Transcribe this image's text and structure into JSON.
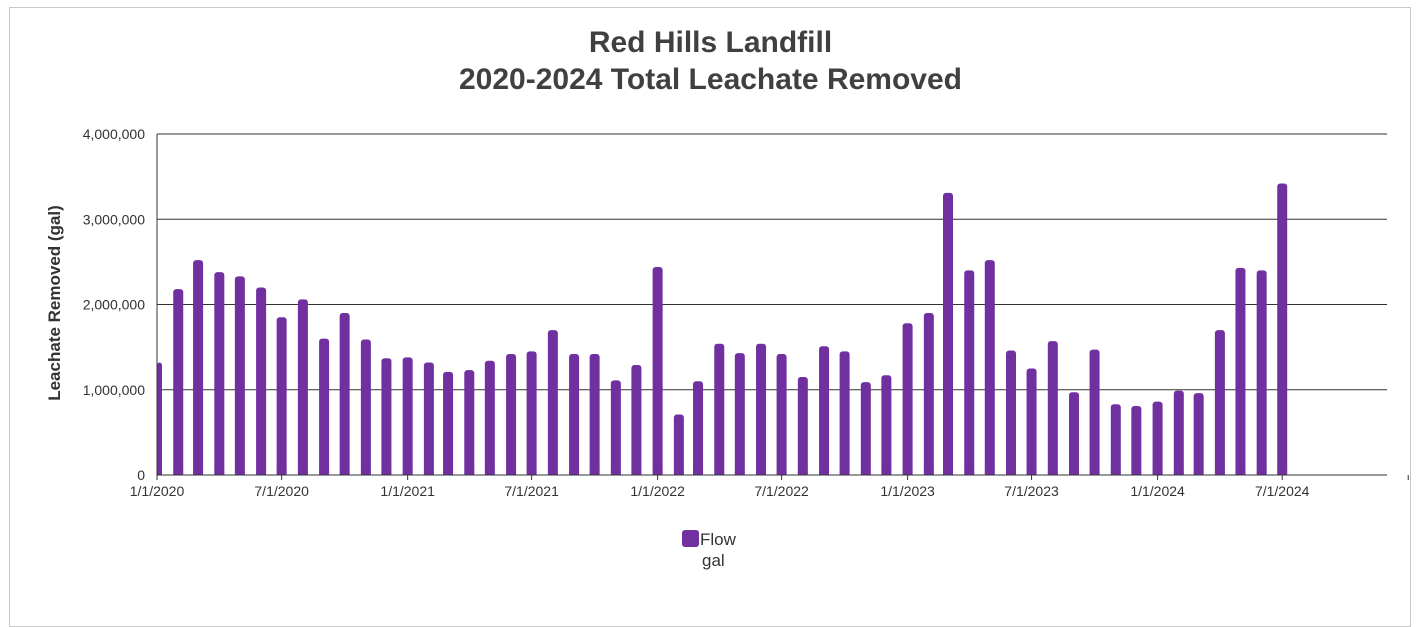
{
  "chart_data": {
    "type": "bar",
    "title": [
      "Red Hills Landfill",
      "2020-2024 Total Leachate Removed"
    ],
    "xlabel": "",
    "ylabel": "Leachate Removed (gal)",
    "ylim": [
      0,
      4000000
    ],
    "yticks": [
      "0",
      "1,000,000",
      "2,000,000",
      "3,000,000",
      "4,000,000"
    ],
    "xticks": [
      "1/1/2020",
      "7/1/2020",
      "1/1/2021",
      "7/1/2021",
      "1/1/2022",
      "7/1/2022",
      "1/1/2023",
      "7/1/2023",
      "1/1/2024",
      "7/1/2024"
    ],
    "xrange": [
      "1/1/2020",
      "12/1/2024"
    ],
    "grid": true,
    "legend_position": "bottom",
    "bar_color": "#7030a0",
    "series": [
      {
        "name": "Flow",
        "unit": "gal",
        "dates": [
          "1/1/2020",
          "2/1/2020",
          "3/1/2020",
          "4/1/2020",
          "5/1/2020",
          "6/1/2020",
          "7/1/2020",
          "8/1/2020",
          "9/1/2020",
          "10/1/2020",
          "11/1/2020",
          "12/1/2020",
          "1/1/2021",
          "2/1/2021",
          "3/1/2021",
          "4/1/2021",
          "5/1/2021",
          "6/1/2021",
          "7/1/2021",
          "8/1/2021",
          "9/1/2021",
          "10/1/2021",
          "11/1/2021",
          "12/1/2021",
          "1/1/2022",
          "2/1/2022",
          "3/1/2022",
          "4/1/2022",
          "5/1/2022",
          "6/1/2022",
          "7/1/2022",
          "8/1/2022",
          "9/1/2022",
          "10/1/2022",
          "11/1/2022",
          "12/1/2022",
          "1/1/2023",
          "2/1/2023",
          "3/1/2023",
          "4/1/2023",
          "5/1/2023",
          "6/1/2023",
          "7/1/2023",
          "8/1/2023",
          "9/1/2023",
          "10/1/2023",
          "11/1/2023",
          "12/1/2023",
          "1/1/2024",
          "2/1/2024",
          "3/1/2024",
          "4/1/2024",
          "5/1/2024",
          "6/1/2024",
          "7/1/2024"
        ],
        "values": [
          1320000,
          2180000,
          2520000,
          2380000,
          2330000,
          2200000,
          1850000,
          2060000,
          1600000,
          1900000,
          1590000,
          1370000,
          1380000,
          1320000,
          1210000,
          1230000,
          1340000,
          1420000,
          1450000,
          1700000,
          1420000,
          1420000,
          1110000,
          1290000,
          2440000,
          710000,
          1100000,
          1540000,
          1430000,
          1540000,
          1420000,
          1150000,
          1510000,
          1450000,
          1090000,
          1170000,
          1780000,
          1900000,
          3310000,
          2400000,
          2520000,
          1460000,
          1250000,
          1570000,
          970000,
          1470000,
          830000,
          810000,
          860000,
          990000,
          960000,
          1700000,
          2430000,
          2400000,
          3420000
        ]
      }
    ]
  }
}
